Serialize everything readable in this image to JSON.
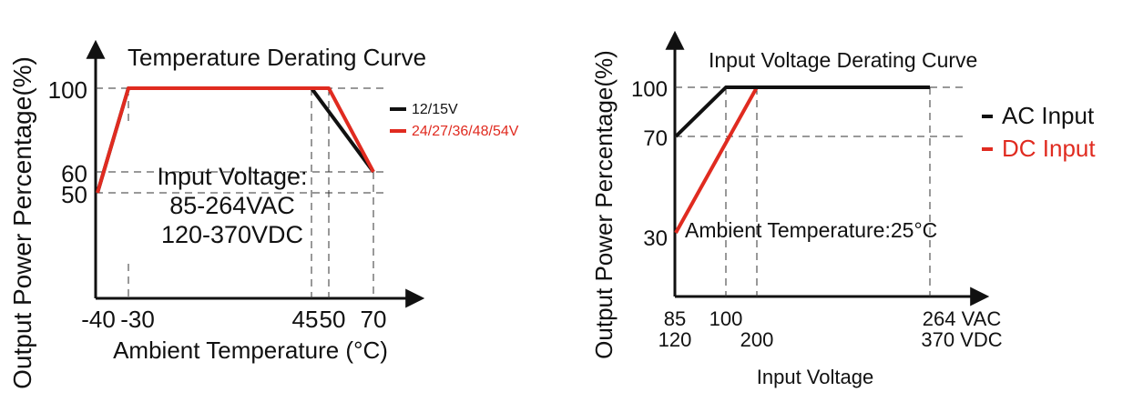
{
  "chart_data": [
    {
      "type": "line",
      "title": "Temperature Derating Curve",
      "xlabel": "Ambient Temperature (°C)",
      "ylabel": "Output Power Percentage(%)",
      "x_ticks": [
        "-40",
        "-30",
        "45",
        "50",
        "70"
      ],
      "y_ticks": [
        "100",
        "60",
        "50"
      ],
      "xlim": [
        -40,
        70
      ],
      "ylim": [
        0,
        100
      ],
      "legend_placement": "right",
      "note": [
        "Input Voltage:",
        "85-264VAC",
        "120-370VDC"
      ],
      "series": [
        {
          "name": "12/15V",
          "color": "#111111",
          "x": [
            -40,
            -30,
            45,
            70
          ],
          "y": [
            50,
            100,
            100,
            60
          ]
        },
        {
          "name": "24/27/36/48/54V",
          "color": "#e02b20",
          "x": [
            -40,
            -30,
            50,
            70
          ],
          "y": [
            50,
            100,
            100,
            60
          ]
        }
      ]
    },
    {
      "type": "line",
      "title": "Input Voltage Derating Curve",
      "xlabel": "Input Voltage",
      "ylabel": "Output Power Percentage(%)",
      "x_ticks_ac": [
        "85",
        "100",
        "264 VAC"
      ],
      "x_ticks_dc": [
        "120",
        "200",
        "370 VDC"
      ],
      "y_ticks": [
        "100",
        "70",
        "30"
      ],
      "xlim_ac": [
        85,
        264
      ],
      "xlim_dc": [
        120,
        370
      ],
      "ylim": [
        0,
        100
      ],
      "legend_placement": "right",
      "note": "Ambient Temperature:25°C",
      "series": [
        {
          "name": "AC Input",
          "color": "#111111",
          "x": [
            85,
            100,
            264
          ],
          "y": [
            70,
            100,
            100
          ]
        },
        {
          "name": "DC Input",
          "color": "#e02b20",
          "x": [
            120,
            200,
            370
          ],
          "y": [
            30,
            100,
            100
          ]
        }
      ]
    }
  ]
}
